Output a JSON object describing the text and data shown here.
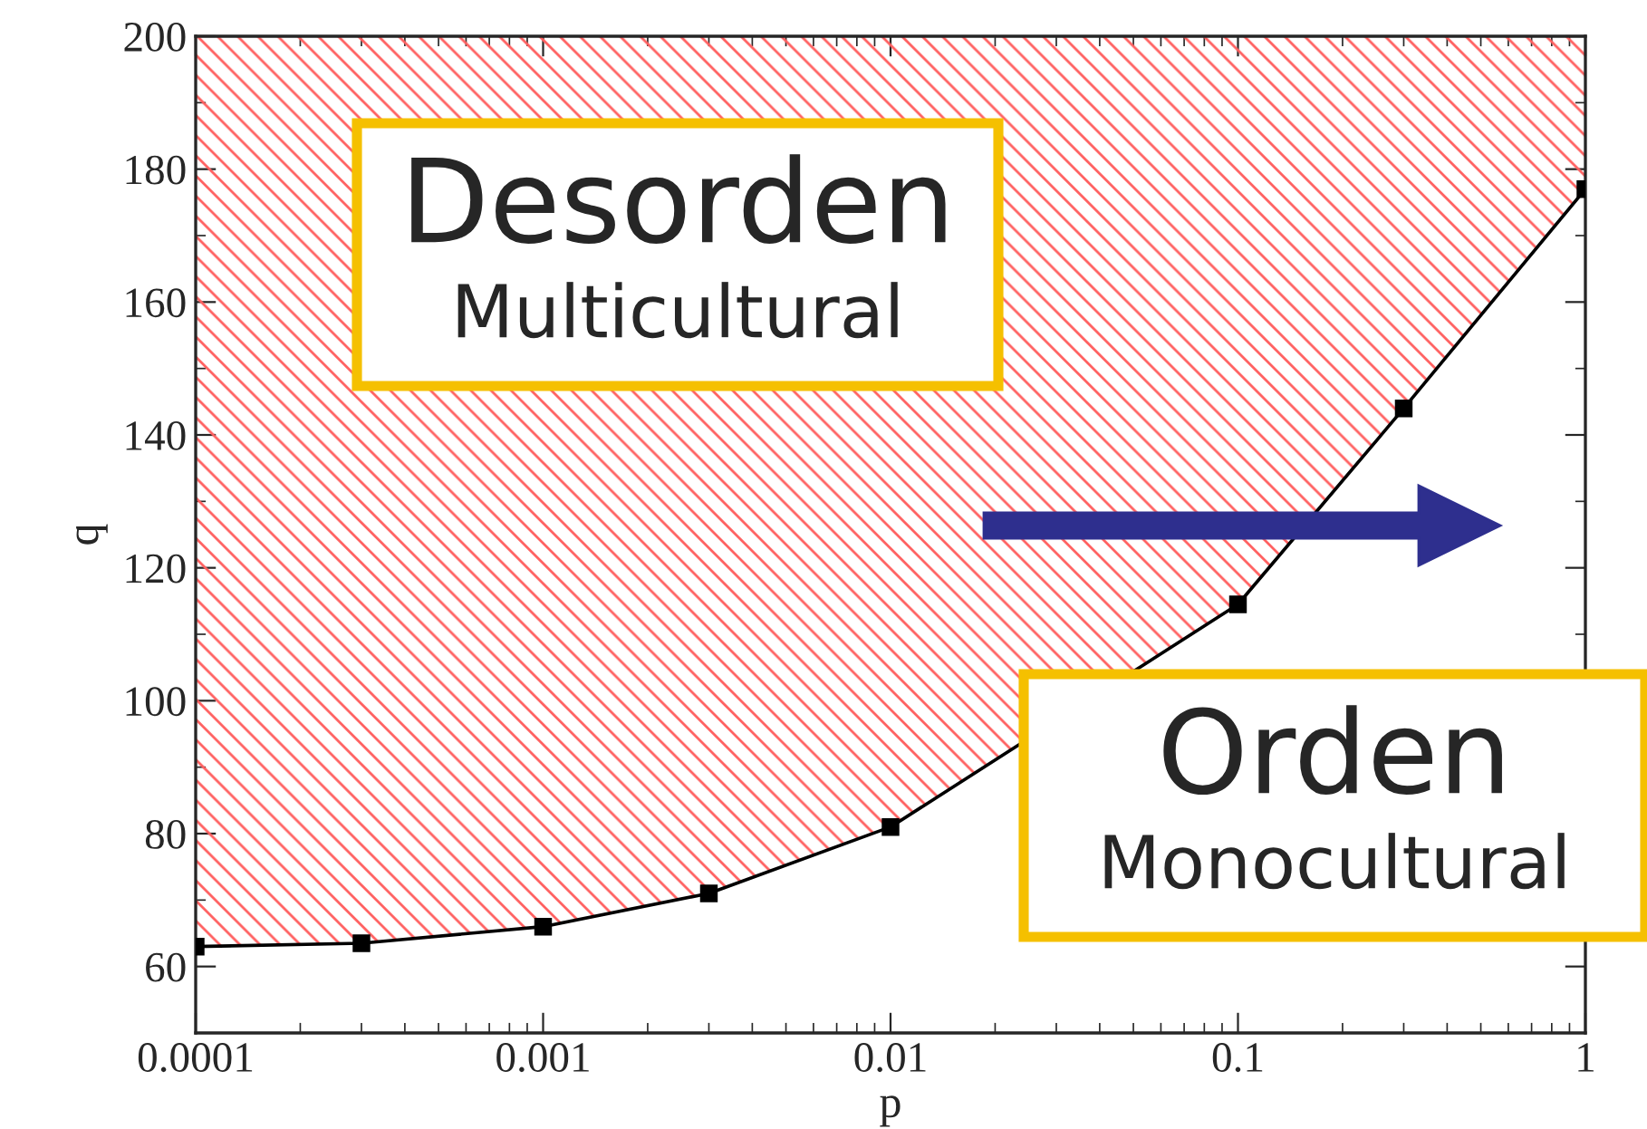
{
  "chart_data": {
    "type": "line",
    "xlabel": "p",
    "ylabel": "q",
    "x": [
      0.0001,
      0.0003,
      0.001,
      0.003,
      0.01,
      0.1,
      0.3,
      1
    ],
    "series": [
      {
        "color": "#000000",
        "values": [
          63,
          63.5,
          66,
          71,
          81,
          114.5,
          144,
          177
        ]
      }
    ],
    "log": "x",
    "marker": "square",
    "line_style": "solid",
    "xlim": [
      0.0001,
      1
    ],
    "xticks": [
      {
        "value": 0.0001,
        "label": "0.0001"
      },
      {
        "value": 0.001,
        "label": "0.001"
      },
      {
        "value": 0.01,
        "label": "0.01"
      },
      {
        "value": 0.1,
        "label": "0.1"
      },
      {
        "value": 1,
        "label": "1"
      }
    ],
    "ylim": [
      50,
      200
    ],
    "yticks": [
      60,
      80,
      100,
      120,
      140,
      160,
      180,
      200
    ],
    "annotations": [
      "Desorden",
      "Multicultural",
      "Orden",
      "Monocultural"
    ]
  }
}
